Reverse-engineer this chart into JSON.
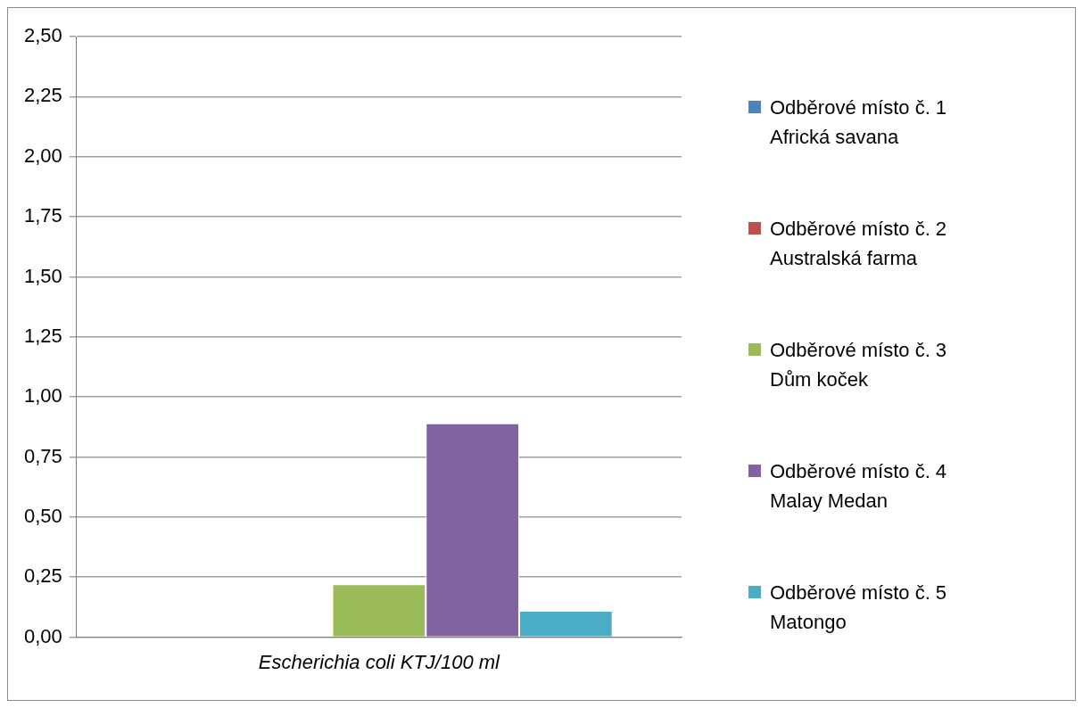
{
  "chart_data": {
    "type": "bar",
    "categories": [
      "Escherichia coli KTJ/100 ml"
    ],
    "series": [
      {
        "name": "Odběrové místo č. 1 Africká savana",
        "color": "#4f81bd",
        "values": [
          0
        ]
      },
      {
        "name": "Odběrové místo č. 2 Australská farma",
        "color": "#c0504d",
        "values": [
          0
        ]
      },
      {
        "name": "Odběrové místo č. 3 Dům koček",
        "color": "#9bbb59",
        "values": [
          0.22
        ]
      },
      {
        "name": "Odběrové místo č. 4 Malay Medan",
        "color": "#8064a2",
        "values": [
          0.89
        ]
      },
      {
        "name": "Odběrové místo č. 5 Matongo",
        "color": "#4bacc6",
        "values": [
          0.11
        ]
      }
    ],
    "ylim": [
      0,
      2.5
    ],
    "yticks": [
      {
        "value": 0,
        "label": "0,00"
      },
      {
        "value": 0.25,
        "label": "0,25"
      },
      {
        "value": 0.5,
        "label": "0,50"
      },
      {
        "value": 0.75,
        "label": "0,75"
      },
      {
        "value": 1,
        "label": "1,00"
      },
      {
        "value": 1.25,
        "label": "1,25"
      },
      {
        "value": 1.5,
        "label": "1,50"
      },
      {
        "value": 1.75,
        "label": "1,75"
      },
      {
        "value": 2,
        "label": "2,00"
      },
      {
        "value": 2.25,
        "label": "2,25"
      },
      {
        "value": 2.5,
        "label": "2,50"
      }
    ],
    "grid": "y",
    "legend": "right"
  }
}
